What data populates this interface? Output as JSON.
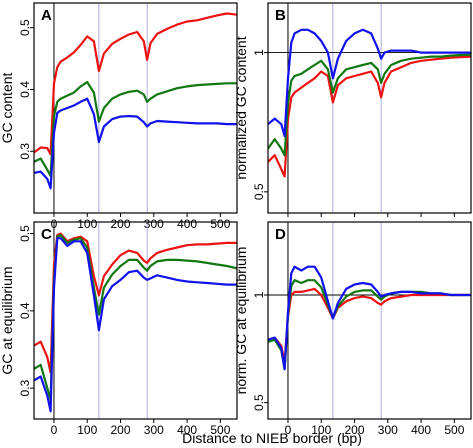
{
  "xlabel": "Distance to NIEB border (bp)",
  "colors": {
    "red": "#ee1111",
    "green": "#117711",
    "blue": "#1111ee",
    "guide": "#9999dd"
  },
  "chart_data": [
    {
      "panel": "A",
      "type": "line",
      "xlim": [
        -60,
        550
      ],
      "ylim": [
        0.2,
        0.54
      ],
      "log_y": false,
      "ylabel": "GC content",
      "yticks": [
        0.3,
        0.4,
        0.5
      ],
      "xticks": [
        0,
        100,
        200,
        300,
        400,
        500
      ],
      "xtick_labels_shown": true,
      "vlines": [
        0,
        135,
        280
      ],
      "hline": null,
      "series": [
        {
          "color": "red",
          "x": [
            -60,
            -40,
            -20,
            -10,
            0,
            10,
            20,
            40,
            60,
            80,
            100,
            120,
            135,
            150,
            175,
            200,
            225,
            250,
            270,
            280,
            290,
            310,
            340,
            370,
            400,
            430,
            460,
            490,
            520,
            550
          ],
          "y": [
            0.298,
            0.306,
            0.305,
            0.295,
            0.41,
            0.436,
            0.445,
            0.452,
            0.46,
            0.472,
            0.486,
            0.478,
            0.43,
            0.458,
            0.474,
            0.482,
            0.489,
            0.493,
            0.478,
            0.448,
            0.475,
            0.49,
            0.498,
            0.505,
            0.51,
            0.512,
            0.516,
            0.52,
            0.523,
            0.521
          ]
        },
        {
          "color": "green",
          "x": [
            -60,
            -40,
            -20,
            -10,
            0,
            10,
            20,
            40,
            60,
            80,
            100,
            120,
            135,
            150,
            175,
            200,
            225,
            250,
            270,
            280,
            290,
            310,
            340,
            370,
            400,
            430,
            460,
            490,
            520,
            550
          ],
          "y": [
            0.283,
            0.288,
            0.27,
            0.26,
            0.357,
            0.38,
            0.385,
            0.39,
            0.395,
            0.405,
            0.412,
            0.395,
            0.348,
            0.37,
            0.385,
            0.392,
            0.396,
            0.398,
            0.392,
            0.38,
            0.385,
            0.392,
            0.397,
            0.402,
            0.405,
            0.407,
            0.408,
            0.409,
            0.41,
            0.41
          ]
        },
        {
          "color": "blue",
          "x": [
            -60,
            -40,
            -20,
            -10,
            0,
            10,
            20,
            40,
            60,
            80,
            100,
            120,
            135,
            150,
            175,
            200,
            225,
            250,
            270,
            280,
            290,
            310,
            340,
            370,
            400,
            430,
            460,
            490,
            520,
            550
          ],
          "y": [
            0.265,
            0.267,
            0.255,
            0.24,
            0.33,
            0.362,
            0.366,
            0.37,
            0.374,
            0.38,
            0.385,
            0.36,
            0.315,
            0.34,
            0.352,
            0.356,
            0.357,
            0.356,
            0.347,
            0.34,
            0.345,
            0.349,
            0.348,
            0.347,
            0.346,
            0.345,
            0.345,
            0.345,
            0.344,
            0.344
          ]
        }
      ]
    },
    {
      "panel": "B",
      "type": "line",
      "xlim": [
        -60,
        550
      ],
      "ylim": [
        0.45,
        1.28
      ],
      "log_y": true,
      "ylabel": "normalized GC content",
      "yticks": [
        0.5,
        1
      ],
      "xticks": [
        0,
        100,
        200,
        300,
        400,
        500
      ],
      "xtick_labels_shown": false,
      "vlines": [
        0,
        135,
        280
      ],
      "hline": 1,
      "series": [
        {
          "color": "red",
          "x": [
            -60,
            -40,
            -20,
            -10,
            0,
            10,
            20,
            40,
            60,
            80,
            100,
            120,
            135,
            150,
            175,
            200,
            225,
            250,
            270,
            280,
            290,
            310,
            340,
            370,
            400,
            430,
            460,
            490,
            520,
            550
          ],
          "y": [
            0.58,
            0.6,
            0.56,
            0.54,
            0.72,
            0.8,
            0.82,
            0.84,
            0.86,
            0.88,
            0.91,
            0.89,
            0.78,
            0.85,
            0.88,
            0.89,
            0.9,
            0.91,
            0.86,
            0.8,
            0.86,
            0.91,
            0.93,
            0.95,
            0.96,
            0.965,
            0.97,
            0.975,
            0.978,
            0.98
          ]
        },
        {
          "color": "green",
          "x": [
            -60,
            -40,
            -20,
            -10,
            0,
            10,
            20,
            40,
            60,
            80,
            100,
            120,
            135,
            150,
            175,
            200,
            225,
            250,
            270,
            280,
            290,
            310,
            340,
            370,
            400,
            430,
            460,
            490,
            520,
            550
          ],
          "y": [
            0.62,
            0.65,
            0.62,
            0.6,
            0.78,
            0.87,
            0.89,
            0.9,
            0.92,
            0.94,
            0.96,
            0.92,
            0.82,
            0.88,
            0.92,
            0.93,
            0.94,
            0.95,
            0.92,
            0.86,
            0.9,
            0.94,
            0.96,
            0.97,
            0.975,
            0.98,
            0.98,
            0.985,
            0.988,
            0.99
          ]
        },
        {
          "color": "blue",
          "x": [
            -60,
            -40,
            -20,
            -10,
            0,
            10,
            20,
            40,
            60,
            80,
            100,
            120,
            135,
            150,
            175,
            200,
            225,
            250,
            270,
            280,
            290,
            310,
            340,
            370,
            400,
            430,
            460,
            490,
            520,
            550
          ],
          "y": [
            0.7,
            0.72,
            0.7,
            0.66,
            0.88,
            1.05,
            1.1,
            1.12,
            1.12,
            1.1,
            1.06,
            1.0,
            0.88,
            0.97,
            1.06,
            1.1,
            1.12,
            1.1,
            1.02,
            0.97,
            1.0,
            1.01,
            1.01,
            1.01,
            1.0,
            1.0,
            1.0,
            1.0,
            1.0,
            1.0
          ]
        }
      ]
    },
    {
      "panel": "C",
      "type": "line",
      "xlim": [
        -60,
        550
      ],
      "ylim": [
        0.26,
        0.515
      ],
      "log_y": false,
      "ylabel": "GC at equilibrium",
      "yticks": [
        0.3,
        0.4,
        0.5
      ],
      "xticks": [
        0,
        100,
        200,
        300,
        400,
        500
      ],
      "xtick_labels_shown": true,
      "vlines": [
        0,
        135,
        280
      ],
      "hline": null,
      "series": [
        {
          "color": "red",
          "x": [
            -60,
            -40,
            -20,
            -10,
            0,
            10,
            20,
            40,
            60,
            80,
            100,
            120,
            135,
            150,
            175,
            200,
            225,
            250,
            270,
            280,
            290,
            310,
            340,
            370,
            400,
            430,
            460,
            490,
            520,
            550
          ],
          "y": [
            0.355,
            0.36,
            0.34,
            0.32,
            0.46,
            0.498,
            0.5,
            0.49,
            0.494,
            0.496,
            0.49,
            0.445,
            0.42,
            0.445,
            0.46,
            0.472,
            0.478,
            0.475,
            0.465,
            0.462,
            0.468,
            0.475,
            0.479,
            0.482,
            0.485,
            0.486,
            0.486,
            0.487,
            0.488,
            0.488
          ]
        },
        {
          "color": "green",
          "x": [
            -60,
            -40,
            -20,
            -10,
            0,
            10,
            20,
            40,
            60,
            80,
            100,
            120,
            135,
            150,
            175,
            200,
            225,
            250,
            270,
            280,
            290,
            310,
            340,
            370,
            400,
            430,
            460,
            490,
            520,
            550
          ],
          "y": [
            0.325,
            0.33,
            0.3,
            0.285,
            0.44,
            0.496,
            0.498,
            0.488,
            0.492,
            0.494,
            0.482,
            0.43,
            0.395,
            0.43,
            0.447,
            0.458,
            0.466,
            0.466,
            0.456,
            0.452,
            0.458,
            0.464,
            0.466,
            0.466,
            0.465,
            0.464,
            0.462,
            0.46,
            0.458,
            0.455
          ]
        },
        {
          "color": "blue",
          "x": [
            -60,
            -40,
            -20,
            -10,
            0,
            10,
            20,
            40,
            60,
            80,
            100,
            120,
            135,
            150,
            175,
            200,
            225,
            250,
            270,
            280,
            290,
            310,
            340,
            370,
            400,
            430,
            460,
            490,
            520,
            550
          ],
          "y": [
            0.31,
            0.315,
            0.29,
            0.27,
            0.43,
            0.494,
            0.494,
            0.484,
            0.49,
            0.49,
            0.475,
            0.42,
            0.375,
            0.415,
            0.432,
            0.44,
            0.45,
            0.452,
            0.443,
            0.44,
            0.442,
            0.446,
            0.443,
            0.44,
            0.438,
            0.437,
            0.436,
            0.435,
            0.434,
            0.434
          ]
        }
      ]
    },
    {
      "panel": "D",
      "type": "line",
      "xlim": [
        -60,
        550
      ],
      "ylim": [
        0.45,
        1.6
      ],
      "log_y": true,
      "ylabel": "norm. GC at equilibrium",
      "yticks": [
        0.5,
        1
      ],
      "xticks": [
        0,
        100,
        200,
        300,
        400,
        500
      ],
      "xtick_labels_shown": true,
      "vlines": [
        0,
        135,
        280
      ],
      "hline": 1,
      "series": [
        {
          "color": "red",
          "x": [
            -60,
            -40,
            -20,
            -10,
            0,
            10,
            20,
            40,
            60,
            80,
            100,
            120,
            135,
            150,
            175,
            200,
            225,
            250,
            270,
            280,
            290,
            310,
            340,
            370,
            400,
            430,
            460,
            490,
            520,
            550
          ],
          "y": [
            0.74,
            0.76,
            0.72,
            0.65,
            0.87,
            1.0,
            1.02,
            1.02,
            1.03,
            1.04,
            1.0,
            0.92,
            0.86,
            0.92,
            0.96,
            0.98,
            0.99,
            0.98,
            0.95,
            0.94,
            0.96,
            0.98,
            0.99,
            1.0,
            1.0,
            1.0,
            1.0,
            1.0,
            1.0,
            1.0
          ]
        },
        {
          "color": "green",
          "x": [
            -60,
            -40,
            -20,
            -10,
            0,
            10,
            20,
            40,
            60,
            80,
            100,
            120,
            135,
            150,
            175,
            200,
            225,
            250,
            270,
            280,
            290,
            310,
            340,
            370,
            400,
            430,
            460,
            490,
            520,
            550
          ],
          "y": [
            0.74,
            0.75,
            0.7,
            0.62,
            0.88,
            1.06,
            1.1,
            1.08,
            1.1,
            1.1,
            1.05,
            0.94,
            0.86,
            0.93,
            0.99,
            1.02,
            1.03,
            1.03,
            0.99,
            0.97,
            0.99,
            1.01,
            1.02,
            1.02,
            1.02,
            1.01,
            1.01,
            1.0,
            1.0,
            1.0
          ]
        },
        {
          "color": "blue",
          "x": [
            -60,
            -40,
            -20,
            -10,
            0,
            10,
            20,
            40,
            60,
            80,
            100,
            120,
            135,
            150,
            175,
            200,
            225,
            250,
            270,
            280,
            290,
            310,
            340,
            370,
            400,
            430,
            460,
            490,
            520,
            550
          ],
          "y": [
            0.75,
            0.76,
            0.71,
            0.62,
            0.9,
            1.15,
            1.2,
            1.17,
            1.2,
            1.2,
            1.12,
            0.96,
            0.86,
            0.95,
            1.04,
            1.07,
            1.08,
            1.07,
            1.02,
            0.99,
            1.0,
            1.01,
            1.02,
            1.02,
            1.01,
            1.01,
            1.01,
            1.0,
            1.0,
            1.0
          ]
        }
      ]
    }
  ]
}
